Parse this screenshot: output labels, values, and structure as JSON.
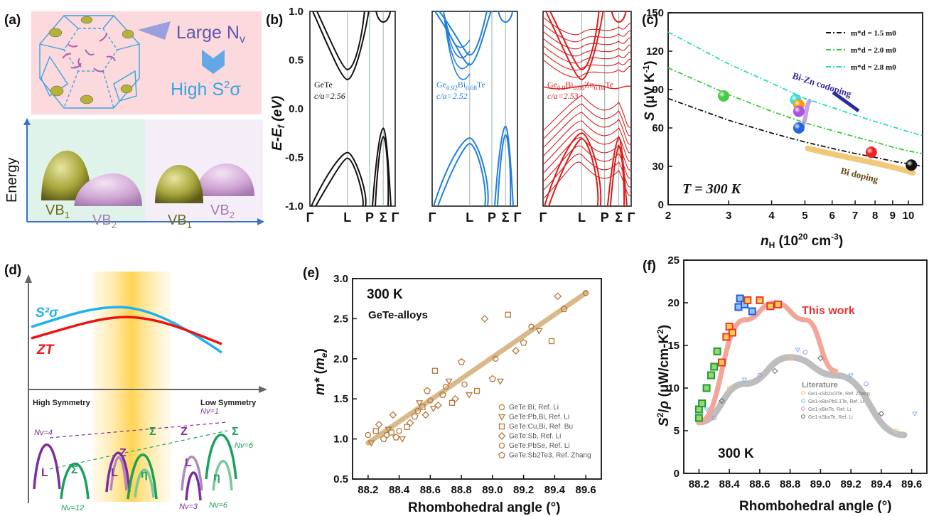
{
  "panels": {
    "a": {
      "label": "(a)",
      "text_large": "Large N",
      "text_large_sub": "v",
      "text_high": "High S",
      "text_high_sup": "2",
      "text_high_tail": "σ",
      "ylabel": "Energy",
      "vb1": "VB",
      "vb1_sub": "1",
      "vb2": "VB",
      "vb2_sub": "2"
    },
    "b": {
      "label": "(b)",
      "ylabel": "E-E",
      "ylabel_sub": "f",
      "ylabel_tail": " (eV)",
      "yticks": [
        "1.0",
        "0.5",
        "0.0",
        "-0.5",
        "-1.0"
      ],
      "kpoints": [
        "Γ",
        "L",
        "P",
        "Σ",
        "Γ"
      ],
      "sub1": {
        "name": "GeTe",
        "ca": "c/a=2.56",
        "color": "#111111"
      },
      "sub2": {
        "name": "Ge0.92Bi0.08Te",
        "name_parts": [
          "Ge",
          "0.92",
          "Bi",
          "0.08",
          "Te"
        ],
        "ca": "c/a=2.52",
        "color": "#1f7fdc"
      },
      "sub3": {
        "name": "Ge0.9Bi0.06Zn0.04Te",
        "name_parts": [
          "Ge",
          "0.9",
          "Bi",
          "0.06",
          "Zn",
          "0.04",
          "Te"
        ],
        "ca": "c/a=2.53",
        "color": "#d91c1c"
      }
    },
    "c": {
      "label": "(c)",
      "legend": [
        "m*d = 1.5 m0",
        "m*d = 2.0 m0",
        "m*d = 2.8 m0"
      ],
      "annot_codoping": "Bi-Zn codoping",
      "annot_bidoping": "Bi doping",
      "temp": "T = 300 K",
      "xticks": [
        "2",
        "3",
        "4",
        "5",
        "6",
        "7",
        "8",
        "9",
        "10"
      ],
      "yticks": [
        "0",
        "30",
        "60",
        "90",
        "120",
        "150"
      ]
    },
    "d": {
      "label": "(d)",
      "s2sigma": "S²σ",
      "zt": "ZT",
      "high_sym": "High Symmetry",
      "low_sym": "Low Symmetry",
      "nv_labels": [
        "Nv=4",
        "Nv=12",
        "Nv=1",
        "Nv=6",
        "Nv=3",
        "Nv=6"
      ],
      "band_labels": [
        "L",
        "Σ",
        "Z",
        "Σ",
        "L",
        "η",
        "Z",
        "Σ",
        "L",
        "η"
      ]
    },
    "e": {
      "label": "(e)",
      "temp": "300 K",
      "subtitle": "GeTe-alloys",
      "xticks": [
        "88.2",
        "88.4",
        "88.6",
        "88.8",
        "89.0",
        "89.2",
        "89.4",
        "89.6"
      ],
      "yticks": [
        "0.5",
        "1.0",
        "1.5",
        "2.0",
        "2.5",
        "3.0"
      ],
      "legend": [
        "GeTe:Bi, Ref. Li",
        "GeTe:Pb,Bi, Ref. Li",
        "GeTe:Cu,Bi, Ref. Bu",
        "GeTe:Sb, Ref. Li",
        "GeTe:PbSe, Ref. Li",
        "GeTe:Sb2Te3, Ref. Zhang"
      ]
    },
    "f": {
      "label": "(f)",
      "this_work": "This work",
      "literature": "Literature",
      "temp": "300 K",
      "xticks": [
        "88.2",
        "88.4",
        "88.6",
        "88.8",
        "89.0",
        "89.2",
        "89.4",
        "89.6"
      ],
      "yticks": [
        "0",
        "5",
        "10",
        "15",
        "20",
        "25"
      ],
      "legend": [
        "Ge1-xSb2x/3Te, Ref. Zhang",
        "Ge1-xBixPb0.1Te, Ref. Li",
        "Ge1-xBixTe, Ref. Li",
        "Ge1-xSbxTe, Ref. Li"
      ]
    }
  },
  "chart_data": [
    {
      "type": "line",
      "panel": "b",
      "ylabel": "E-Ef (eV)",
      "ylim": [
        -1.0,
        1.0
      ],
      "categories": [
        "Γ",
        "L",
        "P",
        "Σ",
        "Γ"
      ],
      "series": [
        {
          "name": "GeTe",
          "annotation": "c/a=2.56",
          "vbm_L": -0.45,
          "cbm_L": 0.3,
          "vb_sigma": -0.2
        },
        {
          "name": "Ge0.92Bi0.08Te",
          "annotation": "c/a=2.52",
          "vbm_L": -0.3,
          "cbm_L": 0.45,
          "vb_sigma": -0.18
        },
        {
          "name": "Ge0.9Bi0.06Zn0.04Te",
          "annotation": "c/a=2.53",
          "vbm_L": -0.25,
          "cbm_L": 0.3,
          "vb_sigma": -0.3
        }
      ]
    },
    {
      "type": "scatter",
      "panel": "c",
      "xlabel": "nH (10^20 cm-3)",
      "ylabel": "S (μV K-1)",
      "xlim": [
        2,
        11
      ],
      "ylim": [
        0,
        150
      ],
      "xscale": "log",
      "curves": [
        {
          "name": "m*d = 1.5 m0",
          "color": "#111111",
          "x": [
            2,
            3,
            4,
            5,
            6,
            7,
            8,
            9,
            10,
            11
          ],
          "y": [
            83,
            66,
            56,
            49,
            44,
            40,
            37,
            34,
            32,
            30
          ]
        },
        {
          "name": "m*d = 2.0 m0",
          "color": "#33cc33",
          "x": [
            2,
            3,
            4,
            5,
            6,
            7,
            8,
            9,
            10,
            11
          ],
          "y": [
            107,
            86,
            73,
            64,
            58,
            53,
            49,
            45,
            42,
            40
          ]
        },
        {
          "name": "m*d = 2.8 m0",
          "color": "#22ddbb",
          "x": [
            2,
            3,
            4,
            5,
            6,
            7,
            8,
            9,
            10,
            11
          ],
          "y": [
            135,
            110,
            95,
            83,
            76,
            70,
            65,
            61,
            57,
            54
          ]
        }
      ],
      "points": [
        {
          "x": 2.9,
          "y": 85,
          "color": "#44cc44"
        },
        {
          "x": 4.7,
          "y": 82,
          "color": "#33dddd"
        },
        {
          "x": 4.8,
          "y": 78,
          "color": "#ff9900"
        },
        {
          "x": 4.8,
          "y": 73,
          "color": "#aa55dd"
        },
        {
          "x": 4.8,
          "y": 60,
          "color": "#2266dd"
        },
        {
          "x": 7.8,
          "y": 41,
          "color": "#ee2222"
        },
        {
          "x": 10.2,
          "y": 31,
          "color": "#111111"
        }
      ]
    },
    {
      "type": "scatter",
      "panel": "e",
      "xlabel": "Rhombohedral angle (°)",
      "ylabel": "m* (me)",
      "xlim": [
        88.1,
        89.7
      ],
      "ylim": [
        0.5,
        3.0
      ],
      "trend": {
        "x": [
          88.2,
          89.6
        ],
        "y": [
          0.95,
          2.82
        ]
      },
      "points": [
        [
          88.2,
          1.05
        ],
        [
          88.22,
          0.95
        ],
        [
          88.25,
          1.1
        ],
        [
          88.27,
          1.18
        ],
        [
          88.3,
          1.0
        ],
        [
          88.32,
          1.05
        ],
        [
          88.33,
          1.12
        ],
        [
          88.35,
          1.08
        ],
        [
          88.36,
          1.3
        ],
        [
          88.38,
          1.02
        ],
        [
          88.4,
          1.1
        ],
        [
          88.42,
          1.0
        ],
        [
          88.45,
          1.15
        ],
        [
          88.47,
          1.2
        ],
        [
          88.5,
          1.28
        ],
        [
          88.52,
          1.35
        ],
        [
          88.53,
          1.45
        ],
        [
          88.55,
          1.4
        ],
        [
          88.57,
          1.3
        ],
        [
          88.58,
          1.6
        ],
        [
          88.6,
          1.48
        ],
        [
          88.62,
          1.38
        ],
        [
          88.63,
          1.85
        ],
        [
          88.65,
          1.42
        ],
        [
          88.68,
          1.55
        ],
        [
          88.7,
          1.65
        ],
        [
          88.72,
          1.72
        ],
        [
          88.74,
          1.45
        ],
        [
          88.76,
          1.5
        ],
        [
          88.8,
          1.96
        ],
        [
          88.82,
          1.68
        ],
        [
          88.85,
          1.55
        ],
        [
          88.9,
          1.6
        ],
        [
          88.95,
          2.5
        ],
        [
          89.0,
          1.75
        ],
        [
          89.02,
          2.0
        ],
        [
          89.05,
          1.72
        ],
        [
          89.1,
          2.55
        ],
        [
          89.15,
          2.1
        ],
        [
          89.2,
          2.2
        ],
        [
          89.25,
          2.4
        ],
        [
          89.3,
          2.35
        ],
        [
          89.38,
          2.22
        ],
        [
          89.42,
          2.78
        ],
        [
          89.46,
          2.62
        ],
        [
          89.6,
          2.82
        ]
      ]
    },
    {
      "type": "scatter",
      "panel": "f",
      "xlabel": "Rhombohedral angle (°)",
      "ylabel": "S²/ρ (μW/cm-K²)",
      "xlim": [
        88.1,
        89.7
      ],
      "ylim": [
        0,
        25
      ],
      "this_work": [
        [
          88.2,
          6.5
        ],
        [
          88.2,
          7.5
        ],
        [
          88.22,
          8.2
        ],
        [
          88.25,
          10
        ],
        [
          88.28,
          11.5
        ],
        [
          88.3,
          12.5
        ],
        [
          88.32,
          14.3
        ],
        [
          88.35,
          13.0
        ],
        [
          88.38,
          16.0
        ],
        [
          88.4,
          17.2
        ],
        [
          88.42,
          16.5
        ],
        [
          88.46,
          19.5
        ],
        [
          88.47,
          20.5
        ],
        [
          88.5,
          19.8
        ],
        [
          88.52,
          20.3
        ],
        [
          88.55,
          19.0
        ],
        [
          88.6,
          20.3
        ],
        [
          88.67,
          19.6
        ],
        [
          88.72,
          19.8
        ]
      ],
      "literature": [
        [
          88.2,
          6.0
        ],
        [
          88.25,
          7.5
        ],
        [
          88.3,
          6.5
        ],
        [
          88.35,
          8.5
        ],
        [
          88.4,
          10.0
        ],
        [
          88.5,
          11.0
        ],
        [
          88.6,
          11.5
        ],
        [
          88.7,
          12.0
        ],
        [
          88.8,
          13.5
        ],
        [
          88.85,
          14.5
        ],
        [
          88.9,
          14.2
        ],
        [
          89.0,
          13.5
        ],
        [
          89.1,
          12.0
        ],
        [
          89.2,
          11.5
        ],
        [
          89.3,
          10.5
        ],
        [
          89.4,
          7.0
        ],
        [
          89.5,
          5.0
        ],
        [
          89.62,
          7.0
        ]
      ],
      "this_work_trend": {
        "x": [
          88.2,
          88.5,
          88.7,
          88.9,
          89.1
        ],
        "y": [
          6,
          18,
          20,
          18,
          12
        ]
      },
      "literature_trend": {
        "x": [
          88.2,
          88.5,
          88.8,
          89.1,
          89.55
        ],
        "y": [
          6,
          10.5,
          13.6,
          11.5,
          4.5
        ]
      }
    }
  ]
}
